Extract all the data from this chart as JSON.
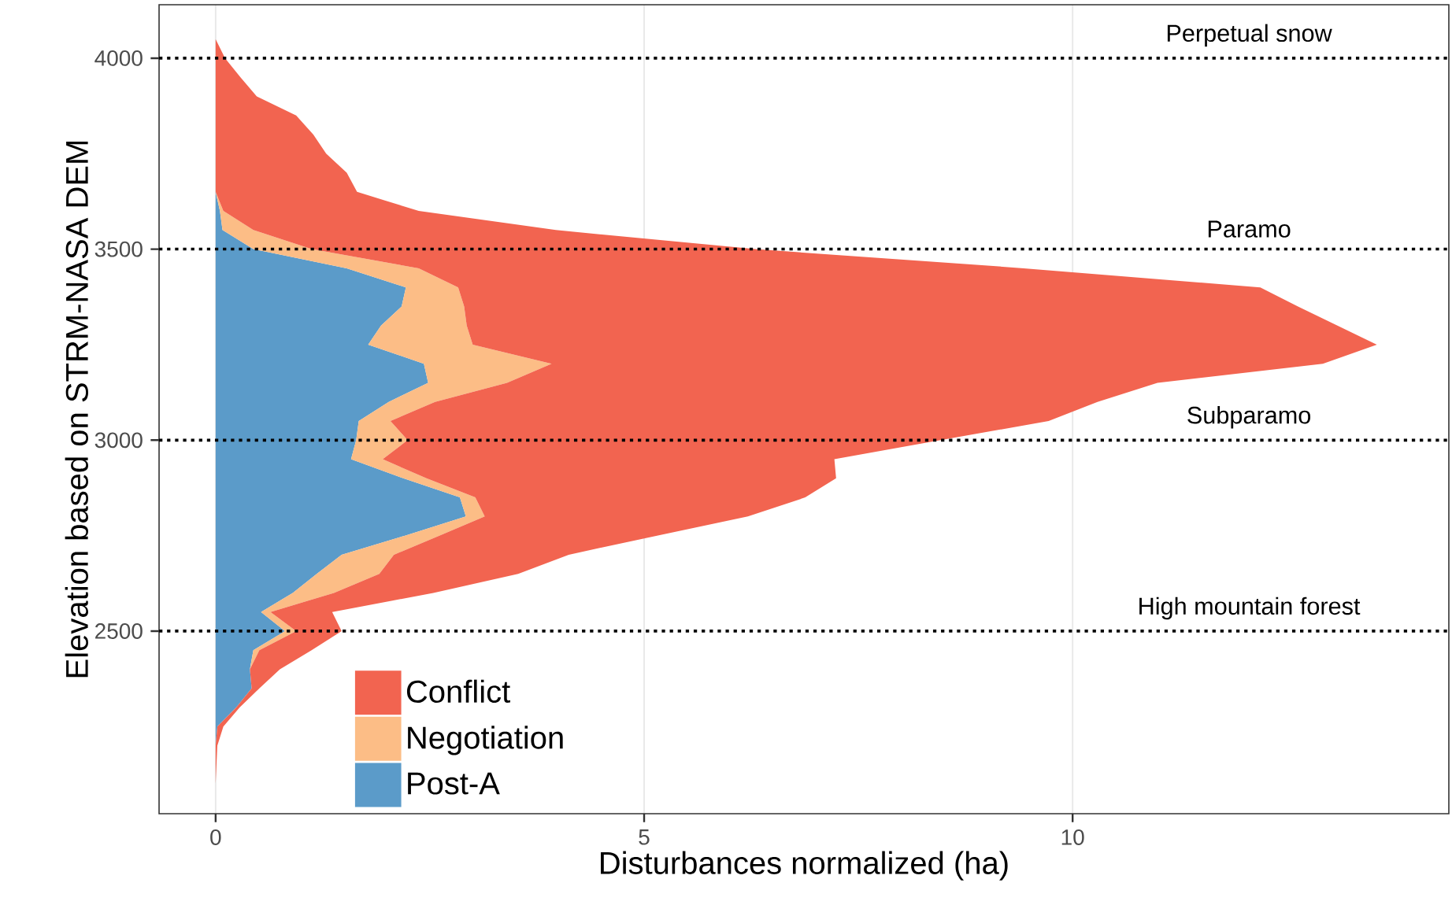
{
  "chart_data": {
    "type": "area",
    "orientation": "horizontal",
    "stacked": true,
    "xlabel": "Disturbances normalized (ha)",
    "ylabel": "Elevation based on STRM-NASA DEM",
    "x": [
      2100,
      2150,
      2200,
      2250,
      2300,
      2350,
      2400,
      2450,
      2500,
      2550,
      2600,
      2650,
      2700,
      2750,
      2800,
      2850,
      2900,
      2950,
      3000,
      3050,
      3100,
      3150,
      3200,
      3250,
      3300,
      3350,
      3400,
      3450,
      3500,
      3550,
      3600,
      3650,
      3700,
      3750,
      3800,
      3850,
      3900,
      3950,
      4000,
      4050
    ],
    "series": [
      {
        "name": "Post-A",
        "color": "#5b9bc9",
        "values": [
          0,
          0,
          0,
          0.02,
          0.24,
          0.42,
          0.4,
          0.44,
          0.81,
          0.53,
          0.9,
          1.18,
          1.47,
          2.21,
          2.92,
          2.85,
          2.19,
          1.58,
          1.64,
          1.67,
          2.02,
          2.48,
          2.43,
          1.78,
          1.93,
          2.17,
          2.22,
          1.53,
          0.44,
          0.08,
          0.05,
          0,
          0,
          0,
          0,
          0,
          0,
          0,
          0,
          0
        ]
      },
      {
        "name": "Negotiation",
        "color": "#fcbd86",
        "values": [
          0,
          0,
          0,
          0,
          0,
          0,
          0,
          0.07,
          0.13,
          0.11,
          0.48,
          0.73,
          0.61,
          0.4,
          0.22,
          0.18,
          0.27,
          0.37,
          0.6,
          0.37,
          0.54,
          0.92,
          1.49,
          1.22,
          1.0,
          0.73,
          0.61,
          0.84,
          0.68,
          0.36,
          0.04,
          0,
          0,
          0,
          0,
          0,
          0,
          0,
          0,
          0
        ]
      },
      {
        "name": "Conflict",
        "color": "#f26450",
        "values": [
          0,
          0.01,
          0.02,
          0.07,
          0.04,
          0.09,
          0.35,
          0.61,
          0.53,
          0.72,
          1.16,
          1.62,
          2.04,
          2.54,
          3.07,
          3.85,
          4.78,
          5.27,
          6.22,
          7.68,
          7.73,
          7.59,
          9.0,
          10.55,
          10.16,
          9.73,
          9.36,
          7.06,
          5.18,
          3.53,
          2.28,
          1.65,
          1.53,
          1.29,
          1.14,
          0.94,
          0.48,
          0.29,
          0.11,
          0
        ]
      }
    ],
    "xlim": [
      -0.66,
      14.39
    ],
    "ylim": [
      2022,
      4140
    ],
    "xticks": [
      0,
      5,
      10
    ],
    "yticks": [
      2500,
      3000,
      3500,
      4000
    ],
    "grid": "x",
    "legend": "bottom left",
    "ref_lines": [
      {
        "axis": "y",
        "value": 4000,
        "label": "Perpetual snow",
        "color": "#000000",
        "line_style": "dotted"
      },
      {
        "axis": "y",
        "value": 3500,
        "label": "Paramo",
        "color": "#000000",
        "line_style": "dotted"
      },
      {
        "axis": "y",
        "value": 3000,
        "label": "Subparamo",
        "color": "#000000",
        "line_style": "dotted"
      },
      {
        "axis": "y",
        "value": 2500,
        "label": "High mountain forest",
        "color": "#000000",
        "line_style": "dotted"
      }
    ]
  }
}
